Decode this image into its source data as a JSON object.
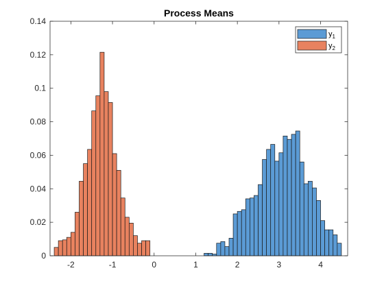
{
  "chart_data": {
    "type": "bar",
    "title": "Process Means",
    "xlabel": "",
    "ylabel": "",
    "xlim": [
      -2.5,
      4.65
    ],
    "ylim": [
      0,
      0.14
    ],
    "xticks": [
      -2,
      -1,
      0,
      1,
      2,
      3,
      4
    ],
    "yticks": [
      0,
      0.02,
      0.04,
      0.06,
      0.08,
      0.1,
      0.12,
      0.14
    ],
    "xtick_labels": [
      "-2",
      "-1",
      "0",
      "1",
      "2",
      "3",
      "4"
    ],
    "ytick_labels": [
      "0",
      "0.02",
      "0.04",
      "0.06",
      "0.08",
      "0.1",
      "0.12",
      "0.14"
    ],
    "grid": false,
    "legend_position": "top-right",
    "bin_width": 0.1,
    "series": [
      {
        "name": "y",
        "name_subscript": "1",
        "color": "#5B9BD5",
        "bin_starts": [
          1.2,
          1.3,
          1.4,
          1.5,
          1.6,
          1.7,
          1.8,
          1.9,
          2.0,
          2.1,
          2.2,
          2.3,
          2.4,
          2.5,
          2.6,
          2.7,
          2.8,
          2.9,
          3.0,
          3.1,
          3.2,
          3.3,
          3.4,
          3.5,
          3.6,
          3.7,
          3.8,
          3.9,
          4.0,
          4.1,
          4.2,
          4.3,
          4.4
        ],
        "values": [
          0.0015,
          0.0015,
          0.001,
          0.0075,
          0.0085,
          0.0055,
          0.0105,
          0.025,
          0.0265,
          0.0275,
          0.034,
          0.0345,
          0.036,
          0.0425,
          0.0575,
          0.0635,
          0.0665,
          0.0565,
          0.0615,
          0.0715,
          0.0695,
          0.0725,
          0.0745,
          0.056,
          0.043,
          0.0445,
          0.0405,
          0.033,
          0.021,
          0.0155,
          0.0155,
          0.0125,
          0.0075
        ]
      },
      {
        "name": "y",
        "name_subscript": "2",
        "color": "#E8825F",
        "bin_starts": [
          -2.4,
          -2.3,
          -2.2,
          -2.1,
          -2.0,
          -1.9,
          -1.8,
          -1.7,
          -1.6,
          -1.5,
          -1.4,
          -1.3,
          -1.2,
          -1.1,
          -1.0,
          -0.9,
          -0.8,
          -0.7,
          -0.6,
          -0.5,
          -0.4,
          -0.3,
          -0.2
        ],
        "values": [
          0.005,
          0.009,
          0.0095,
          0.011,
          0.014,
          0.026,
          0.0445,
          0.055,
          0.0635,
          0.0865,
          0.0955,
          0.1215,
          0.098,
          0.0915,
          0.061,
          0.051,
          0.0345,
          0.023,
          0.0195,
          0.012,
          0.0075,
          0.009,
          0.009
        ]
      }
    ]
  }
}
